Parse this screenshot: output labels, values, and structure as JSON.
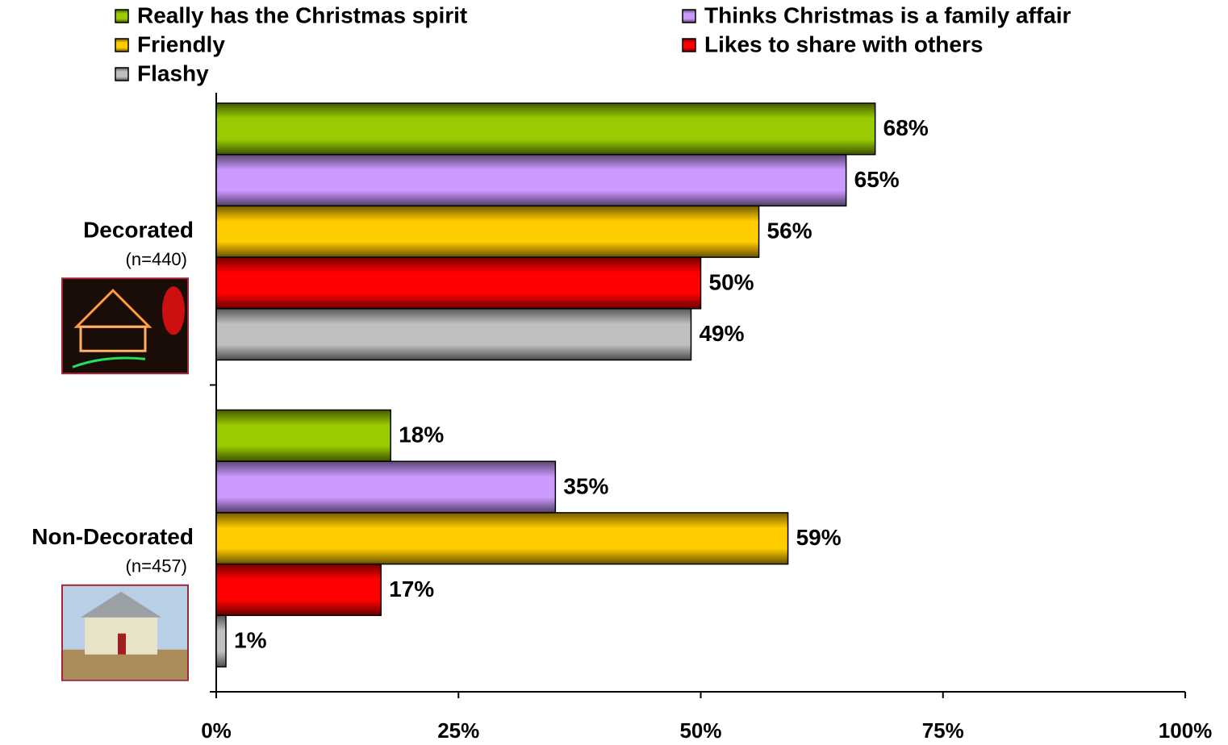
{
  "chart_data": {
    "type": "bar",
    "orientation": "horizontal",
    "categories": [
      "Decorated",
      "Non-Decorated"
    ],
    "category_notes": [
      "(n=440)",
      "(n=457)"
    ],
    "series": [
      {
        "name": "Really has the Christmas spirit",
        "color": "#99cc00",
        "values": [
          68,
          18
        ],
        "value_labels": [
          "68%",
          "18%"
        ]
      },
      {
        "name": "Thinks Christmas is a family affair",
        "color": "#cc99ff",
        "values": [
          65,
          35
        ],
        "value_labels": [
          "65%",
          "35%"
        ]
      },
      {
        "name": "Friendly",
        "color": "#ffcc00",
        "values": [
          56,
          59
        ],
        "value_labels": [
          "56%",
          "59%"
        ]
      },
      {
        "name": "Likes to share with others",
        "color": "#ff0000",
        "values": [
          50,
          17
        ],
        "value_labels": [
          "50%",
          "17%"
        ]
      },
      {
        "name": "Flashy",
        "color": "#c0c0c0",
        "values": [
          49,
          1
        ],
        "value_labels": [
          "49%",
          "1%"
        ]
      }
    ],
    "xlim": [
      0,
      100
    ],
    "xticks": [
      {
        "value": 0,
        "label": "0%"
      },
      {
        "value": 25,
        "label": "25%"
      },
      {
        "value": 50,
        "label": "50%"
      },
      {
        "value": 75,
        "label": "75%"
      },
      {
        "value": 100,
        "label": "100%"
      }
    ],
    "grid": false
  }
}
